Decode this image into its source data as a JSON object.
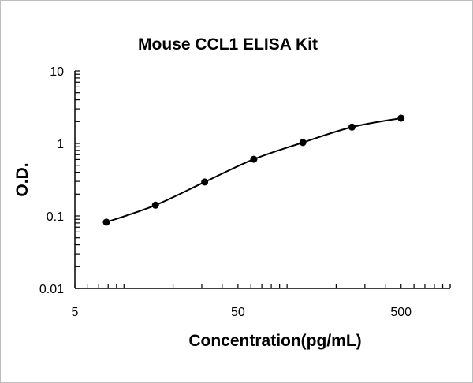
{
  "chart_data": {
    "type": "line",
    "title": "Mouse CCL1 ELISA Kit",
    "xlabel": "Concentration(pg/mL)",
    "ylabel": "O.D.",
    "xscale": "log",
    "yscale": "log",
    "xlim": [
      5,
      1000
    ],
    "ylim": [
      0.01,
      10
    ],
    "xticks": [
      "5",
      "50",
      "500"
    ],
    "yticks": [
      "10",
      "1",
      "0.1",
      "0.01"
    ],
    "grid": false,
    "series": [
      {
        "x": [
          7.8,
          15.6,
          31.25,
          62.5,
          125,
          250,
          500
        ],
        "y": [
          0.082,
          0.141,
          0.294,
          0.605,
          1.03,
          1.68,
          2.23
        ],
        "color": "#000000",
        "marker": "circle",
        "smooth": true
      }
    ]
  }
}
